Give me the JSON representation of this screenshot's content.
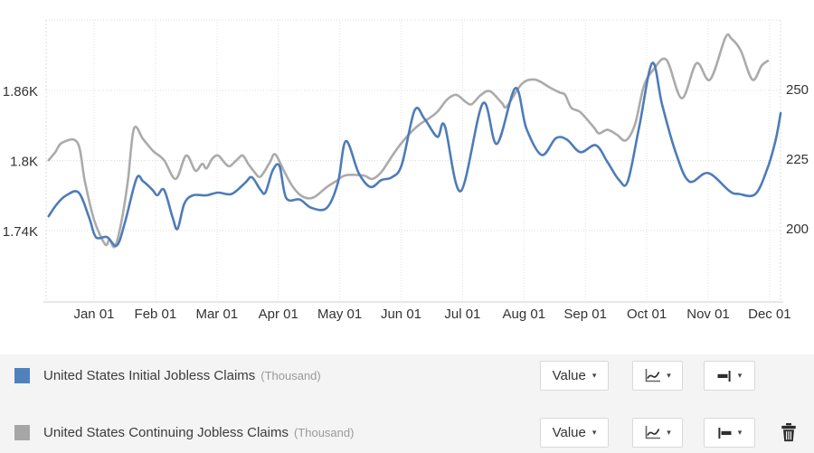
{
  "chart_data": {
    "type": "line",
    "title": "",
    "x_axis": {
      "labels": [
        "Jan 01",
        "Feb 01",
        "Mar 01",
        "Apr 01",
        "May 01",
        "Jun 01",
        "Jul 01",
        "Aug 01",
        "Sep 01",
        "Oct 01",
        "Nov 01",
        "Dec 01"
      ]
    },
    "left_axis": {
      "unit": "Thousand",
      "ticks": [
        {
          "label": "1.86K",
          "value": 1860
        },
        {
          "label": "1.8K",
          "value": 1800
        },
        {
          "label": "1.74K",
          "value": 1740
        }
      ]
    },
    "right_axis": {
      "unit": "Thousand",
      "ticks": [
        {
          "label": "250",
          "value": 250
        },
        {
          "label": "225",
          "value": 225
        },
        {
          "label": "200",
          "value": 200
        }
      ]
    },
    "grid": true,
    "legend_position": "bottom",
    "series": [
      {
        "name": "United States Initial Jobless Claims",
        "unit": "Thousand",
        "axis": "right",
        "color": "#4d7cb8",
        "points": [
          [
            -0.74,
            204.5
          ],
          [
            -0.6,
            209
          ],
          [
            -0.45,
            212
          ],
          [
            -0.25,
            213
          ],
          [
            -0.08,
            204
          ],
          [
            0.03,
            197
          ],
          [
            0.21,
            197
          ],
          [
            0.37,
            194
          ],
          [
            0.5,
            202
          ],
          [
            0.69,
            218
          ],
          [
            0.8,
            217
          ],
          [
            0.95,
            214
          ],
          [
            1.03,
            212
          ],
          [
            1.14,
            214
          ],
          [
            1.28,
            204
          ],
          [
            1.36,
            200
          ],
          [
            1.47,
            209
          ],
          [
            1.61,
            212
          ],
          [
            1.83,
            212
          ],
          [
            2.02,
            213
          ],
          [
            2.24,
            212.5
          ],
          [
            2.46,
            216.5
          ],
          [
            2.57,
            218.5
          ],
          [
            2.71,
            214
          ],
          [
            2.79,
            213
          ],
          [
            2.91,
            221
          ],
          [
            3.02,
            222.5
          ],
          [
            3.13,
            211
          ],
          [
            3.35,
            210.5
          ],
          [
            3.54,
            207.5
          ],
          [
            3.79,
            207.5
          ],
          [
            3.97,
            216.5
          ],
          [
            4.1,
            231.5
          ],
          [
            4.31,
            220
          ],
          [
            4.5,
            215
          ],
          [
            4.68,
            217.5
          ],
          [
            4.85,
            218.5
          ],
          [
            5.01,
            223
          ],
          [
            5.22,
            242.5
          ],
          [
            5.38,
            239.5
          ],
          [
            5.59,
            233
          ],
          [
            5.71,
            237
          ],
          [
            5.97,
            213.5
          ],
          [
            6.33,
            245
          ],
          [
            6.56,
            230.5
          ],
          [
            6.86,
            250.5
          ],
          [
            7.04,
            236
          ],
          [
            7.29,
            226.5
          ],
          [
            7.52,
            232.5
          ],
          [
            7.7,
            232
          ],
          [
            7.92,
            227.5
          ],
          [
            8.17,
            230
          ],
          [
            8.36,
            224
          ],
          [
            8.55,
            217.5
          ],
          [
            8.69,
            217
          ],
          [
            8.88,
            237
          ],
          [
            9.09,
            259.5
          ],
          [
            9.25,
            244.5
          ],
          [
            9.47,
            227.5
          ],
          [
            9.69,
            217
          ],
          [
            10.0,
            220
          ],
          [
            10.35,
            213.5
          ],
          [
            10.5,
            212.5
          ],
          [
            10.77,
            212.5
          ],
          [
            10.97,
            222
          ],
          [
            11.1,
            232
          ],
          [
            11.18,
            241.5
          ]
        ]
      },
      {
        "name": "United States Continuing Jobless Claims",
        "unit": "Thousand",
        "axis": "left",
        "color": "#ababab",
        "points": [
          [
            -0.74,
            1801
          ],
          [
            -0.63,
            1808
          ],
          [
            -0.52,
            1816
          ],
          [
            -0.27,
            1816
          ],
          [
            -0.15,
            1783
          ],
          [
            0.0,
            1750
          ],
          [
            0.18,
            1729
          ],
          [
            0.25,
            1733
          ],
          [
            0.34,
            1727
          ],
          [
            0.44,
            1747
          ],
          [
            0.55,
            1783
          ],
          [
            0.65,
            1828
          ],
          [
            0.8,
            1819
          ],
          [
            0.96,
            1809
          ],
          [
            1.14,
            1801
          ],
          [
            1.33,
            1785
          ],
          [
            1.5,
            1805
          ],
          [
            1.65,
            1792
          ],
          [
            1.76,
            1798
          ],
          [
            1.83,
            1794
          ],
          [
            1.92,
            1802
          ],
          [
            2.02,
            1805
          ],
          [
            2.14,
            1798
          ],
          [
            2.21,
            1796
          ],
          [
            2.32,
            1801
          ],
          [
            2.42,
            1805
          ],
          [
            2.51,
            1798
          ],
          [
            2.61,
            1791
          ],
          [
            2.71,
            1787
          ],
          [
            2.86,
            1799
          ],
          [
            2.95,
            1806
          ],
          [
            3.1,
            1791
          ],
          [
            3.24,
            1778
          ],
          [
            3.39,
            1770
          ],
          [
            3.57,
            1769
          ],
          [
            3.79,
            1778
          ],
          [
            3.94,
            1783
          ],
          [
            4.09,
            1788
          ],
          [
            4.38,
            1788
          ],
          [
            4.53,
            1785
          ],
          [
            4.68,
            1791
          ],
          [
            4.87,
            1806
          ],
          [
            5.01,
            1816
          ],
          [
            5.16,
            1825
          ],
          [
            5.31,
            1832
          ],
          [
            5.46,
            1837
          ],
          [
            5.6,
            1843
          ],
          [
            5.75,
            1853
          ],
          [
            5.9,
            1857
          ],
          [
            6.05,
            1851
          ],
          [
            6.15,
            1849
          ],
          [
            6.3,
            1857
          ],
          [
            6.45,
            1860
          ],
          [
            6.64,
            1850
          ],
          [
            6.72,
            1847
          ],
          [
            6.96,
            1866
          ],
          [
            7.18,
            1870
          ],
          [
            7.43,
            1863
          ],
          [
            7.58,
            1859
          ],
          [
            7.67,
            1857
          ],
          [
            7.77,
            1846
          ],
          [
            7.92,
            1842
          ],
          [
            8.14,
            1829
          ],
          [
            8.22,
            1824
          ],
          [
            8.36,
            1827
          ],
          [
            8.51,
            1823
          ],
          [
            8.66,
            1818
          ],
          [
            8.81,
            1832
          ],
          [
            8.95,
            1864
          ],
          [
            9.1,
            1878
          ],
          [
            9.32,
            1887
          ],
          [
            9.57,
            1854
          ],
          [
            9.81,
            1884
          ],
          [
            10.03,
            1870
          ],
          [
            10.28,
            1906
          ],
          [
            10.38,
            1905
          ],
          [
            10.53,
            1895
          ],
          [
            10.72,
            1870
          ],
          [
            10.87,
            1882
          ],
          [
            10.97,
            1886
          ]
        ]
      }
    ]
  },
  "legend": {
    "rows": [
      {
        "name": "United States Initial Jobless Claims",
        "unit": "(Thousand)",
        "swatch": "#4f81bd",
        "value_label": "Value",
        "axis": "right"
      },
      {
        "name": "United States Continuing Jobless Claims",
        "unit": "(Thousand)",
        "swatch": "#a6a6a6",
        "value_label": "Value",
        "axis": "left"
      }
    ]
  },
  "colors": {
    "panel_bg": "#f4f4f5",
    "grid_line": "#dedede",
    "axis_text": "#333333",
    "bottom_axis_line": "#cfcfcf"
  }
}
